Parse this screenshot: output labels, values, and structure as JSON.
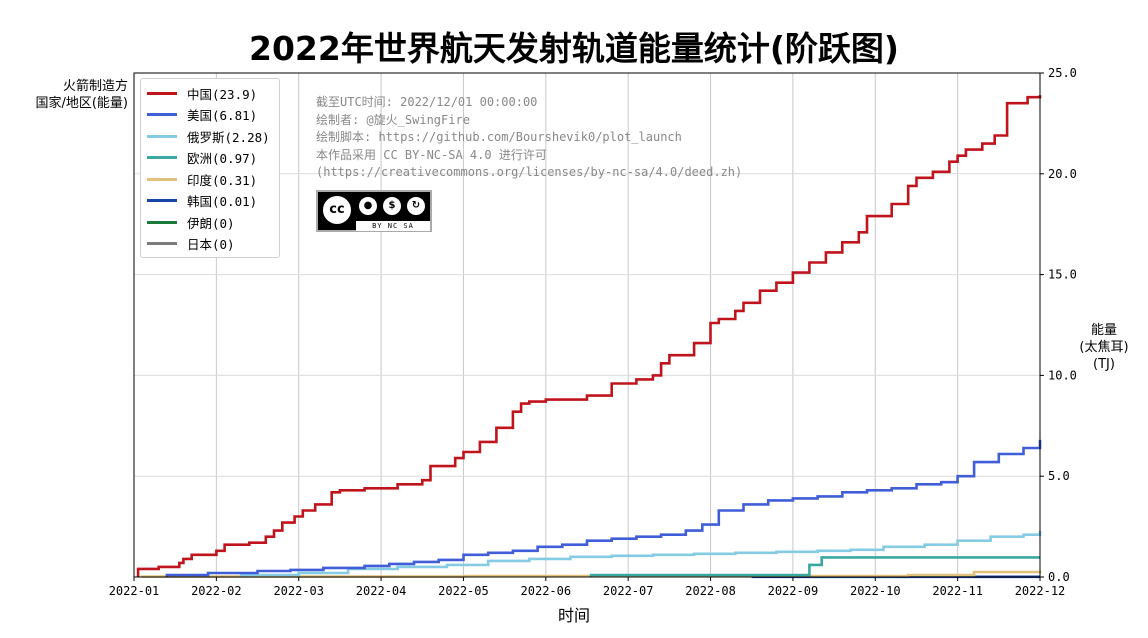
{
  "chart_data": {
    "type": "line",
    "step": true,
    "title": "2022年世界航天发射轨道能量统计(阶跃图)",
    "ylabel_left": [
      "火箭制造方",
      "国家/地区(能量)"
    ],
    "ylabel_right": [
      "能量",
      "(太焦耳)",
      "(TJ)"
    ],
    "xlabel": "时间",
    "x_ticks": [
      "2022-01",
      "2022-02",
      "2022-03",
      "2022-04",
      "2022-05",
      "2022-06",
      "2022-07",
      "2022-08",
      "2022-09",
      "2022-10",
      "2022-11",
      "2022-12"
    ],
    "y_ticks": [
      "0.0",
      "5.0",
      "10.0",
      "15.0",
      "20.0",
      "25.0"
    ],
    "xlim_months": [
      0,
      11
    ],
    "ylim": [
      0,
      25
    ],
    "grid": true,
    "legend_position": "top-left",
    "series": [
      {
        "name": "中国(23.9)",
        "color": "#c0141c",
        "months": [
          0.05,
          0.3,
          0.55,
          0.6,
          0.7,
          1.0,
          1.1,
          1.4,
          1.6,
          1.7,
          1.8,
          1.95,
          2.05,
          2.2,
          2.4,
          2.5,
          2.8,
          3.2,
          3.5,
          3.6,
          3.9,
          4.0,
          4.2,
          4.4,
          4.6,
          4.7,
          4.8,
          5.0,
          5.5,
          5.8,
          6.1,
          6.3,
          6.4,
          6.5,
          6.8,
          7.0,
          7.1,
          7.3,
          7.4,
          7.6,
          7.8,
          8.0,
          8.2,
          8.4,
          8.6,
          8.8,
          8.9,
          9.2,
          9.4,
          9.5,
          9.7,
          9.9,
          10.0,
          10.1,
          10.3,
          10.45,
          10.6,
          10.85,
          11.0
        ],
        "values": [
          0.4,
          0.5,
          0.7,
          0.9,
          1.1,
          1.3,
          1.6,
          1.7,
          2.0,
          2.3,
          2.7,
          3.0,
          3.3,
          3.6,
          4.2,
          4.3,
          4.4,
          4.6,
          4.8,
          5.5,
          5.9,
          6.2,
          6.7,
          7.4,
          8.2,
          8.6,
          8.7,
          8.8,
          9.0,
          9.6,
          9.8,
          10.0,
          10.6,
          11.0,
          11.6,
          12.6,
          12.8,
          13.2,
          13.6,
          14.2,
          14.6,
          15.1,
          15.6,
          16.1,
          16.6,
          17.1,
          17.9,
          18.5,
          19.4,
          19.8,
          20.1,
          20.6,
          20.9,
          21.2,
          21.5,
          21.9,
          23.5,
          23.8,
          23.9
        ]
      },
      {
        "name": "美国(6.81)",
        "color": "#3f5ed8",
        "months": [
          0.4,
          0.9,
          1.5,
          1.9,
          2.3,
          2.8,
          3.1,
          3.4,
          3.7,
          4.0,
          4.3,
          4.6,
          4.9,
          5.2,
          5.5,
          5.8,
          6.1,
          6.4,
          6.7,
          6.9,
          7.1,
          7.4,
          7.7,
          8.0,
          8.3,
          8.6,
          8.9,
          9.2,
          9.5,
          9.8,
          10.0,
          10.2,
          10.5,
          10.8,
          11.0
        ],
        "values": [
          0.1,
          0.2,
          0.3,
          0.35,
          0.45,
          0.55,
          0.65,
          0.75,
          0.85,
          1.1,
          1.2,
          1.3,
          1.5,
          1.6,
          1.8,
          1.9,
          2.0,
          2.1,
          2.3,
          2.6,
          3.3,
          3.6,
          3.8,
          3.9,
          4.0,
          4.2,
          4.3,
          4.4,
          4.6,
          4.7,
          5.0,
          5.7,
          6.1,
          6.4,
          6.8
        ]
      },
      {
        "name": "俄罗斯(2.28)",
        "color": "#86cbe4",
        "months": [
          1.3,
          2.0,
          2.6,
          3.2,
          3.8,
          4.3,
          4.8,
          5.3,
          5.8,
          6.3,
          6.8,
          7.3,
          7.8,
          8.3,
          8.7,
          9.1,
          9.6,
          10.0,
          10.4,
          10.8,
          11.0
        ],
        "values": [
          0.1,
          0.2,
          0.4,
          0.5,
          0.6,
          0.8,
          0.9,
          1.0,
          1.05,
          1.1,
          1.15,
          1.2,
          1.25,
          1.3,
          1.35,
          1.5,
          1.6,
          1.8,
          2.0,
          2.1,
          2.28
        ]
      },
      {
        "name": "欧洲(0.97)",
        "color": "#3aa7a0",
        "months": [
          5.55,
          8.2,
          8.35,
          11.0
        ],
        "values": [
          0.1,
          0.6,
          0.97,
          0.97
        ]
      },
      {
        "name": "印度(0.31)",
        "color": "#e0c07a",
        "months": [
          0.1,
          4.0,
          9.4,
          10.2,
          11.0
        ],
        "values": [
          0.02,
          0.05,
          0.1,
          0.25,
          0.31
        ]
      },
      {
        "name": "韩国(0.01)",
        "color": "#1844a8",
        "months": [
          7.5,
          11.0
        ],
        "values": [
          0.01,
          0.01
        ]
      },
      {
        "name": "伊朗(0)",
        "color": "#1a7a3c",
        "months": [],
        "values": []
      },
      {
        "name": "日本(0)",
        "color": "#7a7a7a",
        "months": [],
        "values": []
      }
    ]
  },
  "watermark": {
    "lines": [
      "截至UTC时间: 2022/12/01 00:00:00",
      "绘制者: @旋火_SwingFire",
      "绘制脚本: https://github.com/Bourshevik0/plot_launch",
      "本作品采用 CC BY-NC-SA 4.0 进行许可",
      "(https://creativecommons.org/licenses/by-nc-sa/4.0/deed.zh)"
    ],
    "badge_text": "cc",
    "badge_terms": "BY NC SA"
  }
}
